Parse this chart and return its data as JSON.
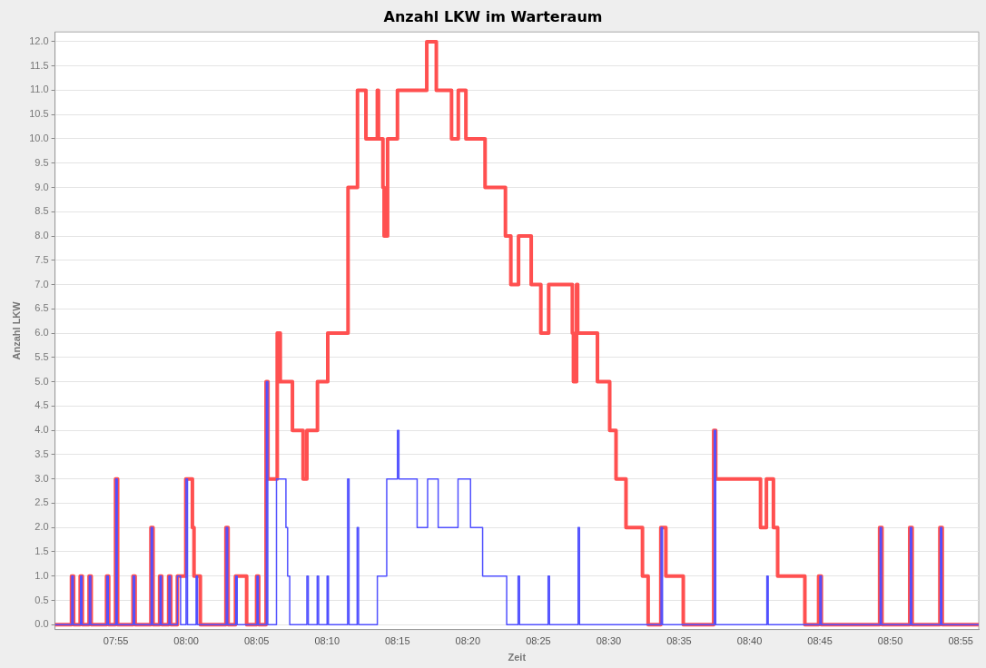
{
  "chart_data": {
    "type": "step",
    "title": "Anzahl LKW im Warteraum",
    "xlabel": "Zeit",
    "ylabel": "Anzahl LKW",
    "xlim": [
      7.8447,
      8.938
    ],
    "grid": "y",
    "legend": false,
    "marker": "none",
    "line_style": "solid",
    "series": [
      {
        "color": "#ff5050",
        "x": [
          7.8447,
          7.8642,
          7.8667,
          7.8745,
          7.877,
          7.885,
          7.8875,
          7.9057,
          7.9082,
          7.9163,
          7.9188,
          7.937,
          7.9395,
          7.9582,
          7.9607,
          7.9685,
          7.971,
          7.9792,
          7.9817,
          7.9895,
          7.9995,
          8.0073,
          8.0092,
          8.0167,
          8.047,
          8.0495,
          8.0583,
          8.0715,
          8.0833,
          8.0858,
          8.0945,
          8.0967,
          8.1077,
          8.1113,
          8.1257,
          8.1383,
          8.1428,
          8.1553,
          8.1675,
          8.1915,
          8.2027,
          8.2127,
          8.2262,
          8.2275,
          8.2328,
          8.2342,
          8.2383,
          8.25,
          8.2847,
          8.296,
          8.314,
          8.322,
          8.331,
          8.3537,
          8.3778,
          8.3842,
          8.3933,
          8.4083,
          8.4197,
          8.429,
          8.457,
          8.4583,
          8.462,
          8.4633,
          8.4867,
          8.5012,
          8.5087,
          8.5205,
          8.54,
          8.5467,
          8.5617,
          8.5677,
          8.5883,
          8.6243,
          8.6267,
          8.6797,
          8.6867,
          8.695,
          8.7,
          8.7322,
          8.7485,
          8.7517,
          8.8207,
          8.8235,
          8.8563,
          8.8592,
          8.892,
          8.8948,
          8.938
        ],
        "values": [
          0,
          1,
          0,
          1,
          0,
          1,
          0,
          1,
          0,
          3,
          0,
          1,
          0,
          2,
          0,
          1,
          0,
          1,
          0,
          1,
          3,
          2,
          1,
          0,
          2,
          0,
          1,
          0,
          1,
          0,
          5,
          3,
          6,
          5,
          4,
          3,
          4,
          5,
          6,
          9,
          11,
          10,
          11,
          10,
          9,
          8,
          10,
          11,
          12,
          11,
          10,
          11,
          10,
          9,
          8,
          7,
          8,
          7,
          6,
          7,
          6,
          5,
          7,
          6,
          5,
          4,
          3,
          2,
          1,
          0,
          2,
          1,
          0,
          4,
          3,
          2,
          3,
          2,
          1,
          0,
          1,
          0,
          2,
          0,
          2,
          0,
          2,
          0,
          0
        ]
      },
      {
        "color": "#5050ff",
        "x": [
          7.8447,
          7.8645,
          7.8662,
          7.8749,
          7.8765,
          7.8853,
          7.887,
          7.906,
          7.9077,
          7.9167,
          7.9183,
          7.9373,
          7.939,
          7.9585,
          7.9602,
          7.9689,
          7.9705,
          7.9795,
          7.9812,
          7.9895,
          7.9933,
          7.9998,
          8.0015,
          8.0117,
          8.0133,
          8.0473,
          8.049,
          8.0587,
          8.0603,
          8.0837,
          8.0853,
          8.0948,
          8.0965,
          8.1068,
          8.118,
          8.12,
          8.1225,
          8.1428,
          8.1445,
          8.155,
          8.1567,
          8.1667,
          8.1683,
          8.191,
          8.1927,
          8.2023,
          8.204,
          8.2262,
          8.2373,
          8.25,
          8.2517,
          8.2733,
          8.2857,
          8.2982,
          8.3217,
          8.3365,
          8.3508,
          8.3793,
          8.3928,
          8.3945,
          8.4283,
          8.43,
          8.4638,
          8.4655,
          8.562,
          8.5637,
          8.625,
          8.6267,
          8.6872,
          8.6888,
          8.75,
          8.7517,
          8.8213,
          8.823,
          8.857,
          8.8587,
          8.8927,
          8.8943,
          8.938
        ],
        "values": [
          0,
          1,
          0,
          1,
          0,
          1,
          0,
          1,
          0,
          3,
          0,
          1,
          0,
          2,
          0,
          1,
          0,
          1,
          0,
          1,
          0,
          3,
          0,
          1,
          0,
          2,
          0,
          1,
          0,
          1,
          0,
          5,
          0,
          3,
          2,
          1,
          0,
          1,
          0,
          1,
          0,
          1,
          0,
          3,
          0,
          2,
          0,
          1,
          3,
          4,
          3,
          2,
          3,
          2,
          3,
          2,
          1,
          0,
          1,
          0,
          1,
          0,
          2,
          0,
          2,
          0,
          4,
          0,
          1,
          0,
          1,
          0,
          2,
          0,
          2,
          0,
          2,
          0,
          0
        ]
      }
    ],
    "xticks": [
      {
        "value": 7.9167,
        "label": "07:55"
      },
      {
        "value": 8,
        "label": "08:00"
      },
      {
        "value": 8.0833,
        "label": "08:05"
      },
      {
        "value": 8.1667,
        "label": "08:10"
      },
      {
        "value": 8.25,
        "label": "08:15"
      },
      {
        "value": 8.3333,
        "label": "08:20"
      },
      {
        "value": 8.4167,
        "label": "08:25"
      },
      {
        "value": 8.5,
        "label": "08:30"
      },
      {
        "value": 8.5833,
        "label": "08:35"
      },
      {
        "value": 8.6667,
        "label": "08:40"
      },
      {
        "value": 8.75,
        "label": "08:45"
      },
      {
        "value": 8.8333,
        "label": "08:50"
      },
      {
        "value": 8.9167,
        "label": "08:55"
      }
    ],
    "ylim": [
      -0.1,
      12.2
    ],
    "yticks": [
      {
        "value": 0,
        "label": "0.0"
      },
      {
        "value": 0.5,
        "label": "0.5"
      },
      {
        "value": 1,
        "label": "1.0"
      },
      {
        "value": 1.5,
        "label": "1.5"
      },
      {
        "value": 2,
        "label": "2.0"
      },
      {
        "value": 2.5,
        "label": "2.5"
      },
      {
        "value": 3,
        "label": "3.0"
      },
      {
        "value": 3.5,
        "label": "3.5"
      },
      {
        "value": 4,
        "label": "4.0"
      },
      {
        "value": 4.5,
        "label": "4.5"
      },
      {
        "value": 5,
        "label": "5.0"
      },
      {
        "value": 5.5,
        "label": "5.5"
      },
      {
        "value": 6,
        "label": "6.0"
      },
      {
        "value": 6.5,
        "label": "6.5"
      },
      {
        "value": 7,
        "label": "7.0"
      },
      {
        "value": 7.5,
        "label": "7.5"
      },
      {
        "value": 8,
        "label": "8.0"
      },
      {
        "value": 8.5,
        "label": "8.5"
      },
      {
        "value": 9,
        "label": "9.0"
      },
      {
        "value": 9.5,
        "label": "9.5"
      },
      {
        "value": 10,
        "label": "10.0"
      },
      {
        "value": 10.5,
        "label": "10.5"
      },
      {
        "value": 11,
        "label": "11.0"
      },
      {
        "value": 11.5,
        "label": "11.5"
      },
      {
        "value": 12,
        "label": "12.0"
      }
    ]
  }
}
